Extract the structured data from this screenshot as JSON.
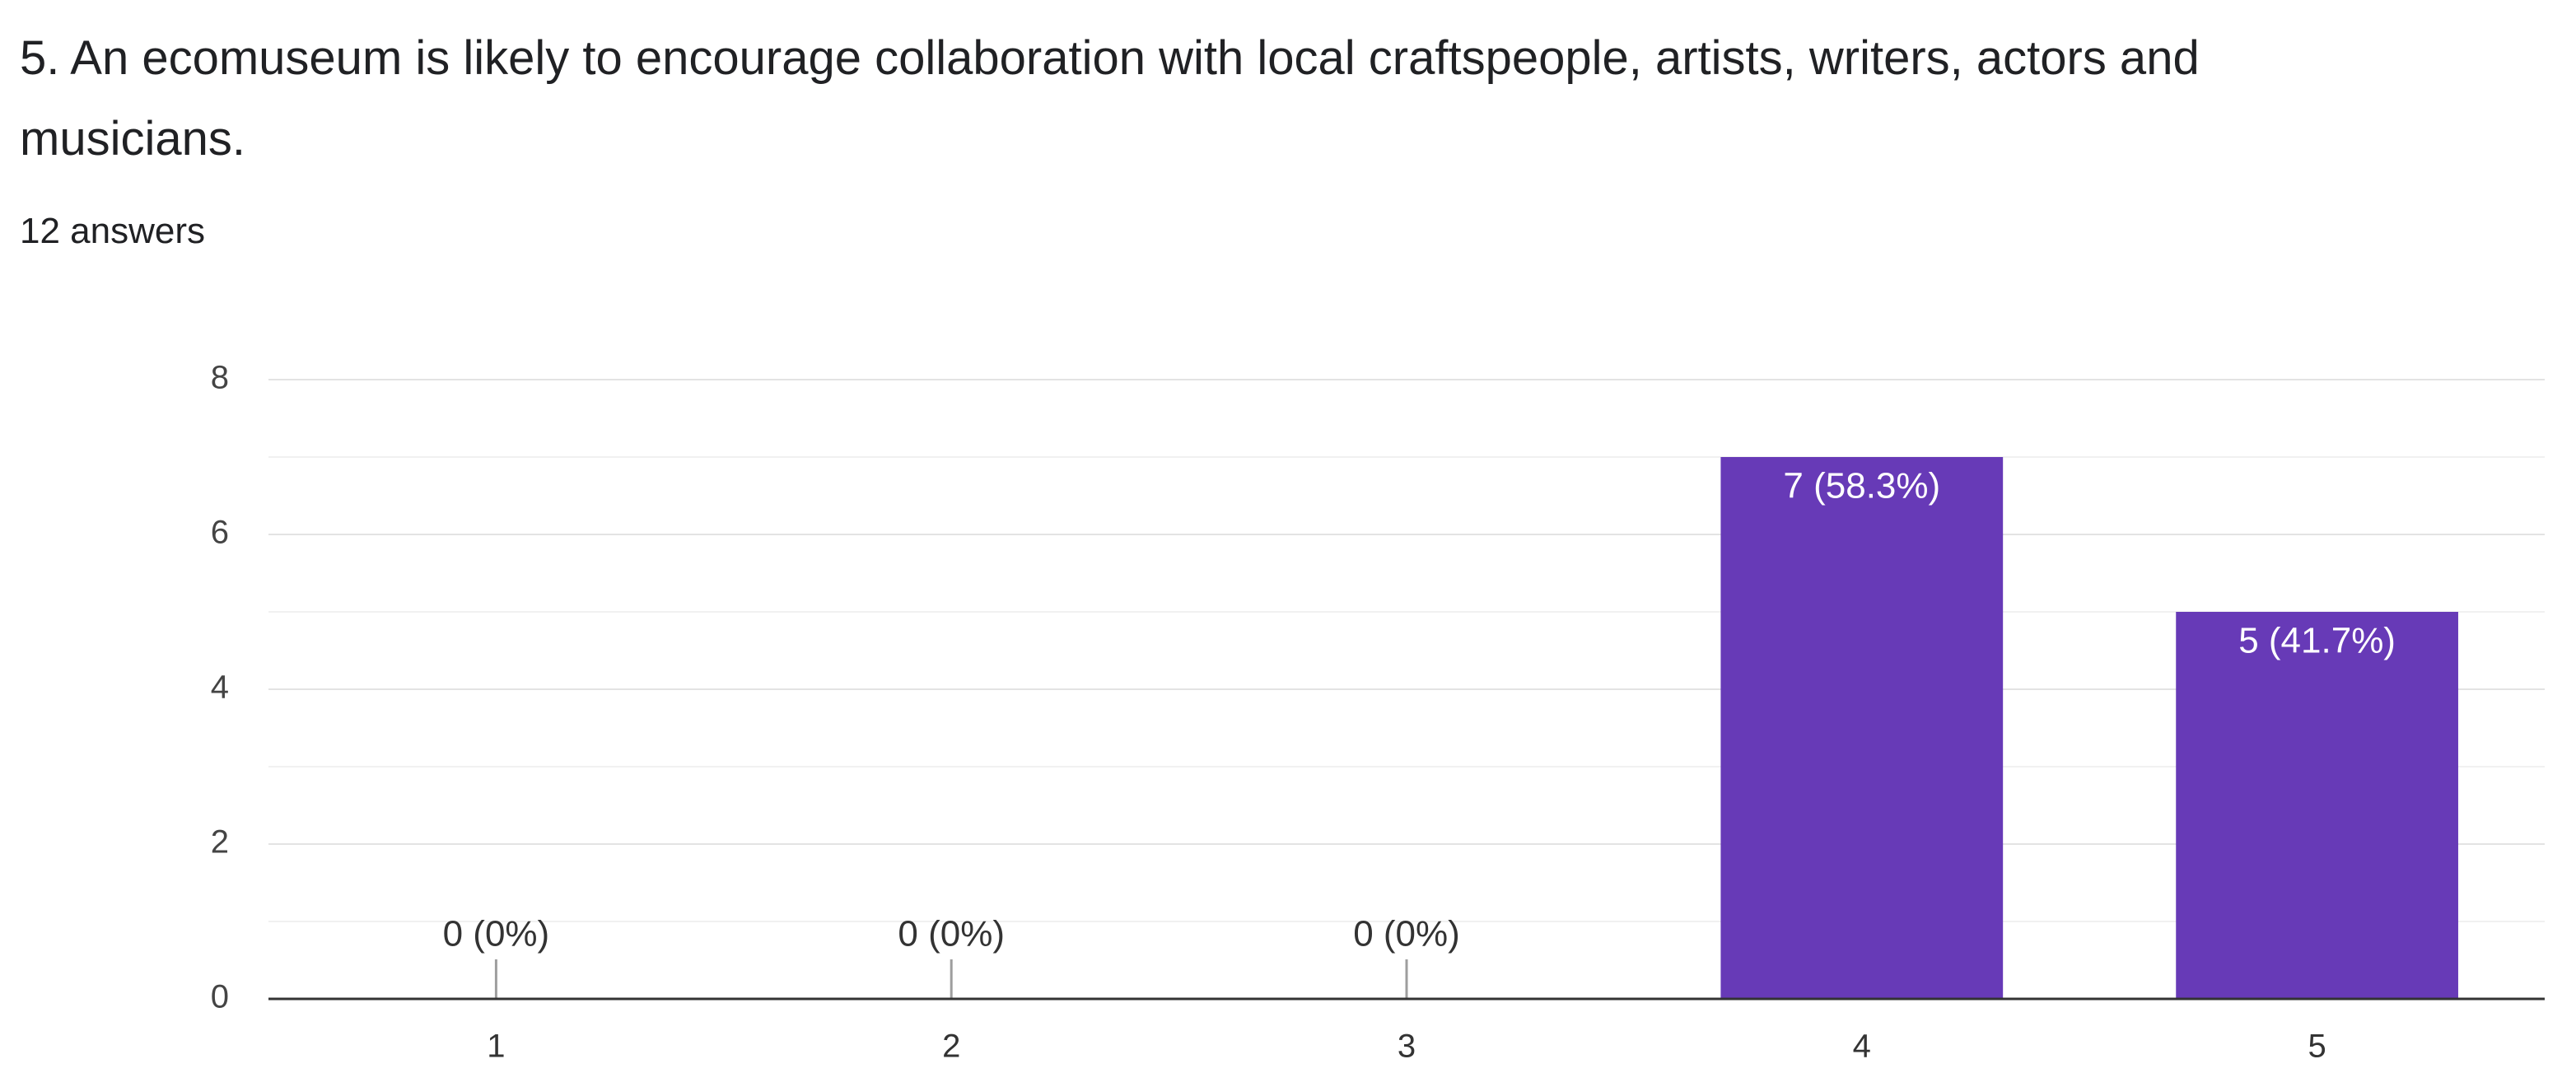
{
  "chart_data": {
    "type": "bar",
    "title": "5. An ecomuseum is likely to encourage collaboration with local craftspeople, artists, writers, actors and musicians.",
    "subtitle": "12 answers",
    "categories": [
      "1",
      "2",
      "3",
      "4",
      "5"
    ],
    "values": [
      0,
      0,
      0,
      7,
      5
    ],
    "value_labels": [
      "0 (0%)",
      "0 (0%)",
      "0 (0%)",
      "7 (58.3%)",
      "5 (41.7%)"
    ],
    "color": "#673ab7",
    "ylim": [
      0,
      8
    ],
    "yticks": [
      0,
      2,
      4,
      6,
      8
    ],
    "grid": true
  }
}
